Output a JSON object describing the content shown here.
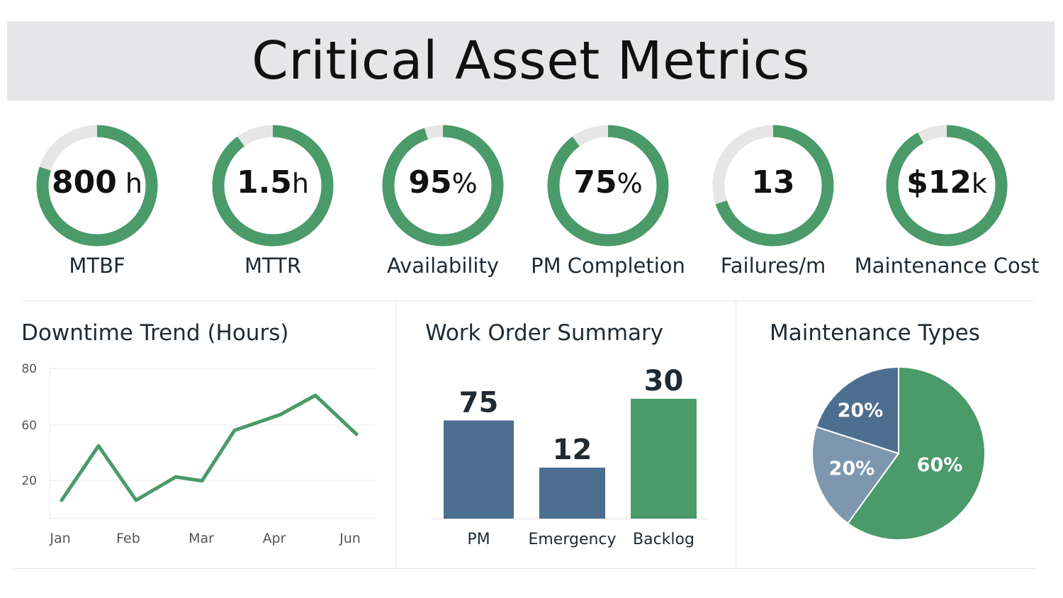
{
  "header": {
    "title": "Critical Asset Metrics"
  },
  "colors": {
    "green": "#4a9a6a",
    "blue": "#4d6f8f",
    "light_blue": "#7d97ae",
    "track": "#e6e6e6"
  },
  "kpis": [
    {
      "value": "800",
      "unit": " h",
      "label": "MTBF",
      "fill": 0.8
    },
    {
      "value": "1.5",
      "unit": "h",
      "label": "MTTR",
      "fill": 0.9
    },
    {
      "value": "95",
      "unit": "%",
      "label": "Availability",
      "fill": 0.95
    },
    {
      "value": "75",
      "unit": "%",
      "label": "PM Completion",
      "fill": 0.9
    },
    {
      "value": "13",
      "unit": "",
      "label": "Failures/m",
      "fill": 0.7
    },
    {
      "value": "$12",
      "unit": "k",
      "label": "Maintenance Cost",
      "fill": 0.92
    }
  ],
  "chart_data": [
    {
      "type": "line",
      "title": "Downtime Trend",
      "title_suffix": "(Hours)",
      "x_ticks": [
        "Jan",
        "Feb",
        "Mar",
        "Apr",
        "Jun"
      ],
      "y_ticks": [
        "80",
        "60",
        "20"
      ],
      "grid": true,
      "series": [
        {
          "values": [
            16,
            44,
            16,
            28,
            26,
            52,
            60,
            70,
            50
          ]
        }
      ]
    },
    {
      "type": "bar",
      "title": "Work Order Summary",
      "categories": [
        "PM",
        "Emergency",
        "Backlog"
      ],
      "values": [
        75,
        12,
        30
      ],
      "value_labels": [
        "75",
        "12",
        "30"
      ],
      "bar_levels": [
        0.77,
        0.4,
        0.94
      ]
    },
    {
      "type": "pie",
      "title": "Maintenance Types",
      "slices": [
        {
          "value": 60,
          "label": "60%"
        },
        {
          "value": 20,
          "label": "20%"
        },
        {
          "value": 20,
          "label": "20%"
        }
      ]
    }
  ]
}
